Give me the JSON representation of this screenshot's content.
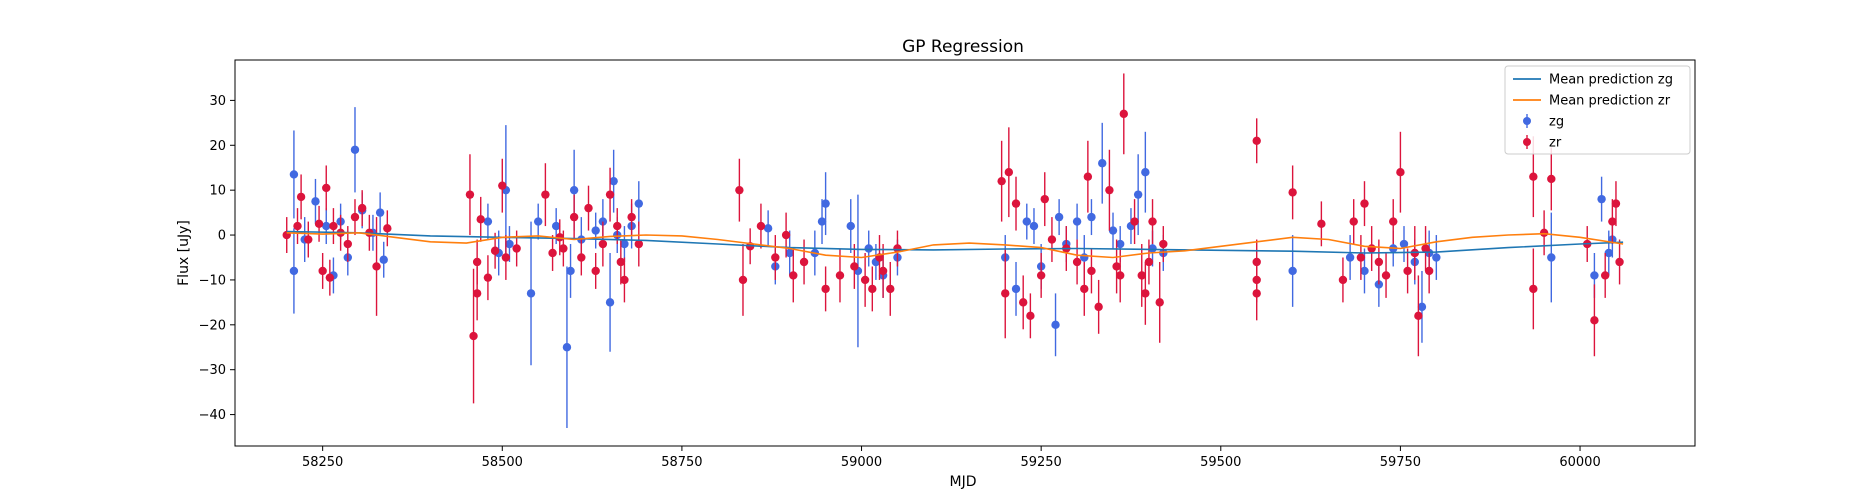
{
  "chart_data": {
    "type": "scatter",
    "title": "GP Regression",
    "xlabel": "MJD",
    "ylabel": "Flux [uJy]",
    "xlim": [
      58128,
      60160
    ],
    "ylim": [
      -47,
      39
    ],
    "xticks": [
      58250,
      58500,
      58750,
      59000,
      59250,
      59500,
      59750,
      60000
    ],
    "yticks": [
      30,
      20,
      10,
      0,
      -10,
      -20,
      -30,
      -40
    ],
    "legend_position": "top-right",
    "series": [
      {
        "name": "Mean prediction zg",
        "kind": "line",
        "color": "#1f77b4",
        "points": [
          [
            58200,
            0.8
          ],
          [
            58300,
            0.5
          ],
          [
            58400,
            -0.2
          ],
          [
            58500,
            -0.5
          ],
          [
            58600,
            -0.8
          ],
          [
            58700,
            -1.2
          ],
          [
            58800,
            -2.0
          ],
          [
            58900,
            -2.8
          ],
          [
            59000,
            -3.2
          ],
          [
            59100,
            -3.3
          ],
          [
            59200,
            -3.1
          ],
          [
            59300,
            -3.0
          ],
          [
            59400,
            -3.2
          ],
          [
            59500,
            -3.4
          ],
          [
            59600,
            -3.6
          ],
          [
            59700,
            -4.0
          ],
          [
            59800,
            -3.8
          ],
          [
            59900,
            -2.8
          ],
          [
            60000,
            -2.0
          ],
          [
            60060,
            -1.6
          ]
        ]
      },
      {
        "name": "Mean prediction zr",
        "kind": "line",
        "color": "#ff7f0e",
        "points": [
          [
            58200,
            0.5
          ],
          [
            58250,
            0.2
          ],
          [
            58300,
            0.5
          ],
          [
            58350,
            -0.5
          ],
          [
            58400,
            -1.5
          ],
          [
            58450,
            -1.8
          ],
          [
            58500,
            -0.5
          ],
          [
            58550,
            -0.2
          ],
          [
            58600,
            -1.0
          ],
          [
            58650,
            -0.3
          ],
          [
            58700,
            0.0
          ],
          [
            58750,
            -0.2
          ],
          [
            58800,
            -1.0
          ],
          [
            58850,
            -2.0
          ],
          [
            58900,
            -3.0
          ],
          [
            58950,
            -4.5
          ],
          [
            59000,
            -5.0
          ],
          [
            59050,
            -3.8
          ],
          [
            59100,
            -2.2
          ],
          [
            59150,
            -1.8
          ],
          [
            59200,
            -2.2
          ],
          [
            59250,
            -2.8
          ],
          [
            59300,
            -4.5
          ],
          [
            59350,
            -5.0
          ],
          [
            59400,
            -4.0
          ],
          [
            59450,
            -3.5
          ],
          [
            59500,
            -2.5
          ],
          [
            59550,
            -1.5
          ],
          [
            59600,
            -0.5
          ],
          [
            59650,
            -1.0
          ],
          [
            59700,
            -2.5
          ],
          [
            59750,
            -3.0
          ],
          [
            59800,
            -1.5
          ],
          [
            59850,
            -0.5
          ],
          [
            59900,
            0.0
          ],
          [
            59950,
            0.3
          ],
          [
            60000,
            -0.5
          ],
          [
            60060,
            -2.0
          ]
        ]
      },
      {
        "name": "zg",
        "kind": "errorbar",
        "color": "#4169e1",
        "points": [
          [
            58210,
            13.5,
            9.8
          ],
          [
            58210,
            -8,
            9.5
          ],
          [
            58225,
            -1,
            5
          ],
          [
            58240,
            7.5,
            5
          ],
          [
            58255,
            2,
            4
          ],
          [
            58265,
            -9,
            4
          ],
          [
            58275,
            3,
            4
          ],
          [
            58285,
            -5,
            4
          ],
          [
            58295,
            19,
            9.5
          ],
          [
            58305,
            5.5,
            4
          ],
          [
            58320,
            0.5,
            4
          ],
          [
            58330,
            5,
            4.5
          ],
          [
            58335,
            -5.5,
            4
          ],
          [
            58480,
            3,
            4
          ],
          [
            58495,
            -4,
            5
          ],
          [
            58505,
            10,
            14.5
          ],
          [
            58510,
            -2,
            4
          ],
          [
            58540,
            -13,
            16
          ],
          [
            58550,
            3,
            4
          ],
          [
            58575,
            2,
            4
          ],
          [
            58590,
            -25,
            18
          ],
          [
            58595,
            -8,
            6
          ],
          [
            58600,
            10,
            9
          ],
          [
            58610,
            -1,
            5
          ],
          [
            58630,
            1,
            4
          ],
          [
            58640,
            3,
            5
          ],
          [
            58650,
            -15,
            11
          ],
          [
            58655,
            12,
            7
          ],
          [
            58660,
            0,
            4
          ],
          [
            58670,
            -2,
            4
          ],
          [
            58680,
            2,
            5
          ],
          [
            58690,
            7,
            5
          ],
          [
            58870,
            1.5,
            4
          ],
          [
            58880,
            -7,
            4
          ],
          [
            58900,
            -4,
            5
          ],
          [
            58935,
            -4,
            5
          ],
          [
            58945,
            3,
            5
          ],
          [
            58950,
            7,
            7
          ],
          [
            58985,
            2,
            6
          ],
          [
            58995,
            -8,
            17
          ],
          [
            59010,
            -3,
            4
          ],
          [
            59020,
            -6,
            4
          ],
          [
            59030,
            -9,
            5
          ],
          [
            59050,
            -5,
            4
          ],
          [
            59200,
            -5,
            5
          ],
          [
            59215,
            -12,
            6
          ],
          [
            59230,
            3,
            4
          ],
          [
            59240,
            2,
            4
          ],
          [
            59250,
            -7,
            5
          ],
          [
            59270,
            -20,
            7
          ],
          [
            59275,
            4,
            4
          ],
          [
            59285,
            -2,
            4
          ],
          [
            59300,
            3,
            4
          ],
          [
            59310,
            -5,
            5
          ],
          [
            59320,
            4,
            4
          ],
          [
            59335,
            16,
            9
          ],
          [
            59350,
            1,
            4
          ],
          [
            59360,
            -2,
            4
          ],
          [
            59375,
            2,
            4
          ],
          [
            59385,
            9,
            9
          ],
          [
            59395,
            14,
            9
          ],
          [
            59405,
            -3,
            4
          ],
          [
            59420,
            -4,
            4
          ],
          [
            59600,
            -8,
            8
          ],
          [
            59680,
            -5,
            5
          ],
          [
            59700,
            -8,
            5
          ],
          [
            59720,
            -11,
            5
          ],
          [
            59740,
            -3,
            4
          ],
          [
            59755,
            -2,
            4
          ],
          [
            59770,
            -6,
            5
          ],
          [
            59780,
            -16,
            8
          ],
          [
            59790,
            -4,
            5
          ],
          [
            59800,
            -5,
            5
          ],
          [
            59960,
            -5,
            10
          ],
          [
            60020,
            -9,
            5
          ],
          [
            60030,
            8,
            5
          ],
          [
            60040,
            -4,
            5
          ],
          [
            60045,
            -1,
            4
          ]
        ]
      },
      {
        "name": "zr",
        "kind": "errorbar",
        "color": "#dc143c",
        "points": [
          [
            58200,
            0,
            4
          ],
          [
            58215,
            2,
            4
          ],
          [
            58220,
            8.5,
            5
          ],
          [
            58230,
            -1,
            4
          ],
          [
            58245,
            2.5,
            4
          ],
          [
            58250,
            -8,
            4
          ],
          [
            58255,
            10.5,
            5
          ],
          [
            58260,
            -9.5,
            4
          ],
          [
            58265,
            2,
            4
          ],
          [
            58275,
            0.5,
            4
          ],
          [
            58285,
            -2,
            4
          ],
          [
            58295,
            4,
            4
          ],
          [
            58305,
            6,
            4
          ],
          [
            58315,
            0.5,
            4
          ],
          [
            58325,
            -7,
            11
          ],
          [
            58340,
            1.5,
            4
          ],
          [
            58455,
            9,
            9
          ],
          [
            58460,
            -22.5,
            15
          ],
          [
            58465,
            -6,
            5
          ],
          [
            58465,
            -13,
            6
          ],
          [
            58470,
            3.5,
            5
          ],
          [
            58480,
            -9.5,
            5
          ],
          [
            58490,
            -3.5,
            4
          ],
          [
            58500,
            11,
            6
          ],
          [
            58505,
            -5,
            5
          ],
          [
            58520,
            -3,
            4
          ],
          [
            58560,
            9,
            7
          ],
          [
            58570,
            -4,
            4
          ],
          [
            58580,
            -0.5,
            4
          ],
          [
            58585,
            -3,
            4
          ],
          [
            58600,
            4,
            5
          ],
          [
            58610,
            -5,
            4
          ],
          [
            58620,
            6,
            5
          ],
          [
            58630,
            -8,
            4
          ],
          [
            58640,
            -2,
            5
          ],
          [
            58650,
            9,
            6
          ],
          [
            58660,
            2,
            4
          ],
          [
            58665,
            -6,
            5
          ],
          [
            58670,
            -10,
            5
          ],
          [
            58680,
            4,
            4
          ],
          [
            58690,
            -2,
            5
          ],
          [
            58830,
            10,
            7
          ],
          [
            58835,
            -10,
            8
          ],
          [
            58845,
            -2.5,
            4
          ],
          [
            58860,
            2,
            5
          ],
          [
            58880,
            -5,
            5
          ],
          [
            58895,
            0,
            5
          ],
          [
            58905,
            -9,
            6
          ],
          [
            58920,
            -6,
            5
          ],
          [
            58950,
            -12,
            5
          ],
          [
            58970,
            -9,
            6
          ],
          [
            58990,
            -7,
            5
          ],
          [
            59005,
            -10,
            6
          ],
          [
            59015,
            -12,
            5
          ],
          [
            59025,
            -5,
            5
          ],
          [
            59030,
            -8,
            6
          ],
          [
            59040,
            -12,
            6
          ],
          [
            59050,
            -3,
            4
          ],
          [
            59195,
            12,
            9
          ],
          [
            59200,
            -13,
            10
          ],
          [
            59205,
            14,
            10
          ],
          [
            59215,
            7,
            6
          ],
          [
            59225,
            -15,
            6
          ],
          [
            59235,
            -18,
            5
          ],
          [
            59250,
            -9,
            5
          ],
          [
            59255,
            8,
            6
          ],
          [
            59265,
            -1,
            5
          ],
          [
            59285,
            -3,
            5
          ],
          [
            59300,
            -6,
            5
          ],
          [
            59310,
            -12,
            6
          ],
          [
            59315,
            13,
            8
          ],
          [
            59320,
            -8,
            5
          ],
          [
            59330,
            -16,
            6
          ],
          [
            59345,
            10,
            9
          ],
          [
            59355,
            -7,
            6
          ],
          [
            59360,
            -9,
            6
          ],
          [
            59365,
            27,
            9
          ],
          [
            59380,
            3,
            5
          ],
          [
            59390,
            -9,
            7
          ],
          [
            59395,
            -13,
            7
          ],
          [
            59400,
            -6,
            5
          ],
          [
            59405,
            3,
            5
          ],
          [
            59415,
            -15,
            9
          ],
          [
            59420,
            -2,
            4
          ],
          [
            59550,
            21,
            5
          ],
          [
            59550,
            -6,
            5
          ],
          [
            59550,
            -10,
            5
          ],
          [
            59550,
            -13,
            6
          ],
          [
            59600,
            9.5,
            6
          ],
          [
            59640,
            2.5,
            5
          ],
          [
            59670,
            -10,
            5
          ],
          [
            59685,
            3,
            5
          ],
          [
            59695,
            -5,
            5
          ],
          [
            59700,
            7,
            5
          ],
          [
            59710,
            -3,
            5
          ],
          [
            59720,
            -6,
            5
          ],
          [
            59730,
            -9,
            5
          ],
          [
            59740,
            3,
            5
          ],
          [
            59750,
            14,
            9
          ],
          [
            59760,
            -8,
            5
          ],
          [
            59770,
            -4,
            6
          ],
          [
            59775,
            -18,
            9
          ],
          [
            59785,
            -3,
            5
          ],
          [
            59790,
            -8,
            5
          ],
          [
            59935,
            13,
            9
          ],
          [
            59935,
            -12,
            9
          ],
          [
            59950,
            0.5,
            5
          ],
          [
            59960,
            12.5,
            7
          ],
          [
            60010,
            -2,
            4
          ],
          [
            60020,
            -19,
            8
          ],
          [
            60035,
            -9,
            5
          ],
          [
            60045,
            3,
            5
          ],
          [
            60050,
            7,
            5
          ],
          [
            60055,
            -6,
            5
          ]
        ]
      }
    ]
  }
}
